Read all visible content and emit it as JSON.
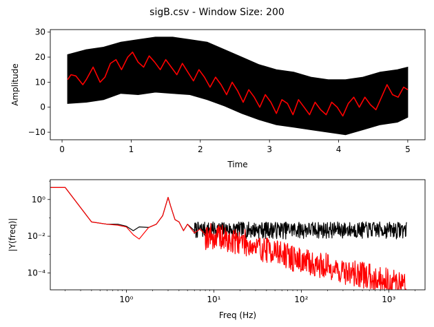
{
  "figure": {
    "title": "sigB.csv - Window Size: 200"
  },
  "chart_data": [
    {
      "type": "line",
      "xlabel": "Time",
      "ylabel": "Amplitude",
      "xlim": [
        -0.17,
        5.25
      ],
      "ylim": [
        -13,
        31
      ],
      "xticks": [
        0,
        1,
        2,
        3,
        4,
        5
      ],
      "xtick_labels": [
        "0",
        "1",
        "2",
        "3",
        "4",
        "5"
      ],
      "yticks": [
        -10,
        0,
        10,
        20,
        30
      ],
      "ytick_labels": [
        "−10",
        "0",
        "10",
        "20",
        "30"
      ],
      "grid": false,
      "series": [
        {
          "color": "#000000",
          "kind": "band",
          "x": [
            0.08,
            0.35,
            0.6,
            0.85,
            1.1,
            1.35,
            1.6,
            1.85,
            2.1,
            2.35,
            2.6,
            2.85,
            3.1,
            3.35,
            3.6,
            3.85,
            4.1,
            4.35,
            4.6,
            4.85,
            5.0
          ],
          "lower": [
            1.5,
            2,
            3,
            5.5,
            5,
            6,
            5.5,
            5,
            3,
            0.5,
            -2.5,
            -5,
            -7,
            -8,
            -9,
            -10,
            -11,
            -9,
            -7,
            -6,
            -4
          ],
          "upper": [
            21,
            23,
            24,
            26,
            27,
            28,
            28,
            27,
            26,
            23,
            20,
            17,
            15,
            14,
            12,
            11,
            11,
            12,
            14,
            15,
            16
          ]
        },
        {
          "color": "#ff0000",
          "x": [
            0.08,
            0.13,
            0.2,
            0.3,
            0.35,
            0.45,
            0.55,
            0.62,
            0.7,
            0.78,
            0.86,
            0.95,
            1.02,
            1.1,
            1.18,
            1.26,
            1.34,
            1.42,
            1.5,
            1.58,
            1.66,
            1.74,
            1.82,
            1.9,
            1.98,
            2.06,
            2.14,
            2.22,
            2.3,
            2.38,
            2.46,
            2.54,
            2.62,
            2.7,
            2.78,
            2.86,
            2.94,
            3.02,
            3.1,
            3.18,
            3.26,
            3.34,
            3.42,
            3.5,
            3.58,
            3.66,
            3.74,
            3.82,
            3.9,
            3.98,
            4.06,
            4.14,
            4.22,
            4.3,
            4.38,
            4.46,
            4.54,
            4.62,
            4.7,
            4.78,
            4.86,
            4.94,
            5.0
          ],
          "y": [
            11,
            13,
            12.5,
            9,
            11,
            16,
            10,
            12,
            17.5,
            19,
            15,
            20,
            22,
            18,
            16,
            20.5,
            18,
            15,
            19,
            16,
            13,
            17.5,
            14,
            10.5,
            15,
            12,
            8,
            12,
            9,
            5,
            10,
            6.5,
            2,
            7,
            4,
            0,
            5,
            2,
            -2.5,
            3,
            1.5,
            -3,
            3,
            0,
            -3,
            2,
            -1,
            -3,
            2,
            0,
            -3.5,
            1.5,
            4,
            0,
            4,
            1,
            -1,
            4,
            9,
            5,
            4,
            8,
            7
          ]
        }
      ]
    },
    {
      "type": "line",
      "xlabel": "Freq (Hz)",
      "ylabel": "|Y(freq)|",
      "xscale": "log",
      "yscale": "log",
      "xlim": [
        0.135,
        2600
      ],
      "ylim": [
        1.2e-05,
        12
      ],
      "xticks": [
        1,
        10,
        100,
        1000
      ],
      "xtick_labels": [
        "10⁰",
        "10¹",
        "10²",
        "10³"
      ],
      "yticks": [
        0.0001,
        0.01,
        1
      ],
      "ytick_labels": [
        "10⁻⁴",
        "10⁻²",
        "10⁰"
      ],
      "grid": false,
      "series": [
        {
          "color": "#000000",
          "x": [
            0.135,
            0.2,
            0.4,
            0.6,
            0.8,
            1.0,
            1.2,
            1.4,
            1.8,
            2.2,
            2.6,
            3.0,
            3.2,
            3.6,
            4.0,
            4.5,
            5,
            6,
            7,
            8,
            9,
            10,
            12,
            15,
            20,
            30,
            50,
            80,
            130,
            200,
            300,
            500,
            800,
            1200,
            1600
          ],
          "y": [
            4.5,
            4.5,
            0.06,
            0.045,
            0.045,
            0.035,
            0.02,
            0.032,
            0.03,
            0.045,
            0.13,
            1.3,
            0.45,
            0.08,
            0.06,
            0.02,
            0.045,
            0.02,
            0.035,
            0.015,
            0.03,
            0.02,
            0.05,
            0.015,
            0.04,
            0.02,
            0.04,
            0.012,
            0.06,
            0.015,
            0.03,
            0.012,
            0.04,
            0.015,
            0.03
          ],
          "band_from_x": 6,
          "band_lower": 0.007,
          "band_upper": 0.06
        },
        {
          "color": "#ff0000",
          "x": [
            0.135,
            0.2,
            0.4,
            0.6,
            0.8,
            1.0,
            1.2,
            1.4,
            1.8,
            2.2,
            2.6,
            3.0,
            3.2,
            3.6,
            4.0,
            4.5,
            5,
            6,
            7,
            8,
            9,
            10,
            12,
            15,
            20,
            30,
            50,
            80,
            130,
            200,
            300,
            500,
            800,
            1200,
            1600
          ],
          "y": [
            4.5,
            4.5,
            0.06,
            0.045,
            0.04,
            0.032,
            0.012,
            0.007,
            0.03,
            0.045,
            0.13,
            1.3,
            0.45,
            0.08,
            0.06,
            0.02,
            0.045,
            0.015,
            0.025,
            0.012,
            0.015,
            0.01,
            0.012,
            0.006,
            0.008,
            0.003,
            0.002,
            0.0008,
            0.0004,
            0.0003,
            0.00015,
            0.0001,
            6e-05,
            4e-05,
            3e-05
          ],
          "band_from_x": 8,
          "band_lower_factor": 0.15,
          "band_upper_factor": 4
        }
      ]
    }
  ]
}
